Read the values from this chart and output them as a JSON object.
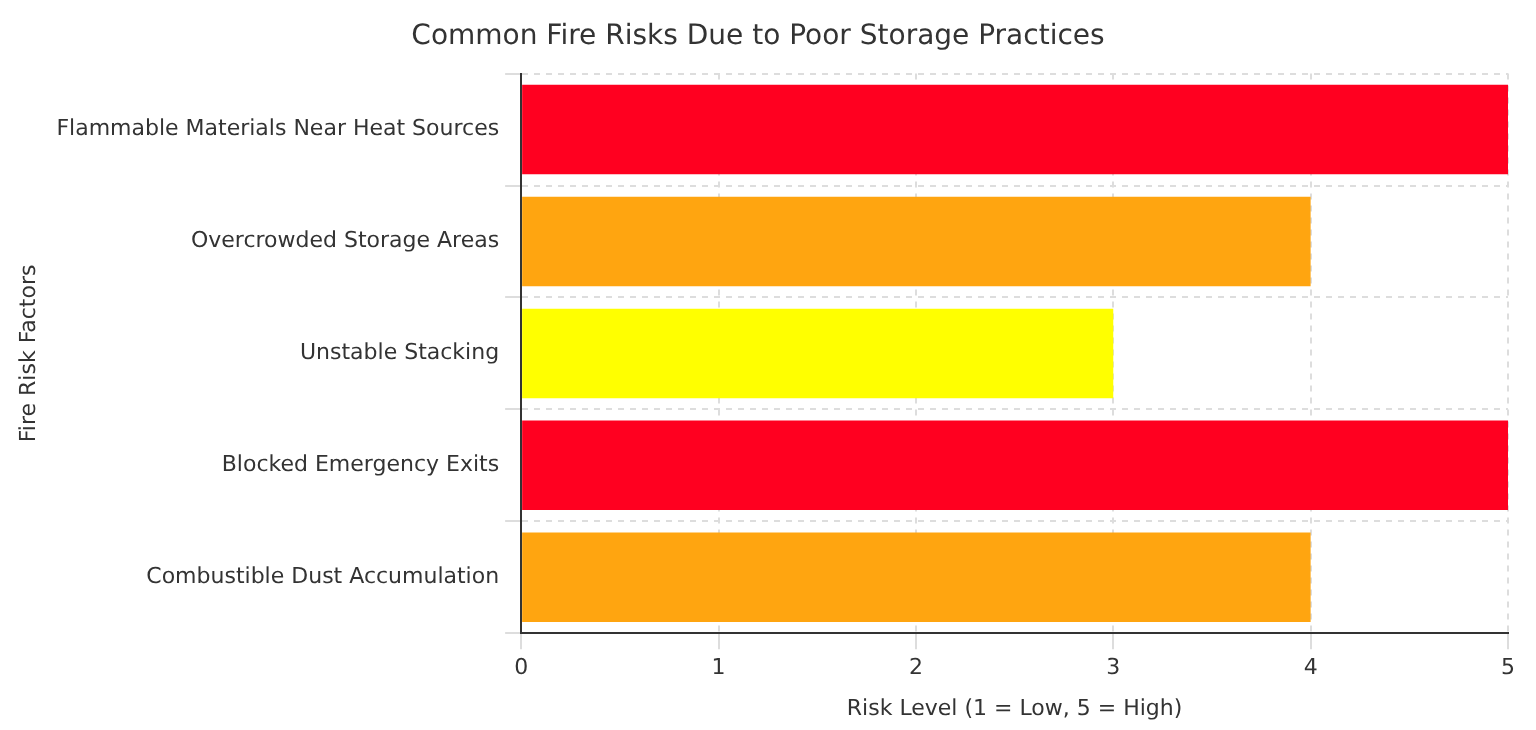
{
  "chart_data": {
    "type": "bar",
    "orientation": "horizontal",
    "title": "Common Fire Risks Due to Poor Storage Practices",
    "xlabel": "Risk Level (1 = Low, 5 = High)",
    "ylabel": "Fire Risk Factors",
    "categories": [
      "Flammable Materials Near Heat Sources",
      "Overcrowded Storage Areas",
      "Unstable Stacking",
      "Blocked Emergency Exits",
      "Combustible Dust Accumulation"
    ],
    "values": [
      5,
      4,
      3,
      5,
      4
    ],
    "colors": [
      "#ff0020",
      "#ffa510",
      "#ffff00",
      "#ff0020",
      "#ffa510"
    ],
    "xlim": [
      0,
      5
    ],
    "xticks": [
      0,
      1,
      2,
      3,
      4,
      5
    ],
    "grid": true
  }
}
